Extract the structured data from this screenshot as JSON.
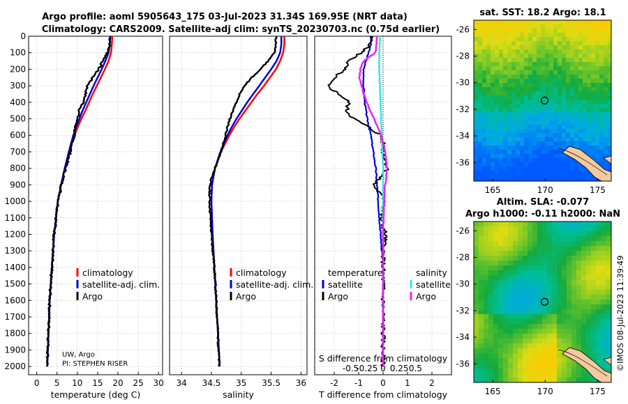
{
  "title": {
    "line1": "Argo profile: aoml 5905643_175 03-Jul-2023 31.34S 169.95E (NRT data)",
    "line2": "Climatology: CARS2009. Satellite-adj clim: synTS_20230703.nc (0.75d earlier)"
  },
  "colors": {
    "climatology": "#ff0000",
    "satellite": "#0000dd",
    "argo": "#000000",
    "sal_satellite": "#33e6e6",
    "sal_argo": "#ee22ee"
  },
  "depth_ticks": [
    "0",
    "100",
    "200",
    "300",
    "400",
    "500",
    "600",
    "700",
    "800",
    "900",
    "1000",
    "1100",
    "1200",
    "1300",
    "1400",
    "1500",
    "1600",
    "1700",
    "1800",
    "1900",
    "2000"
  ],
  "temp_ticks": [
    "0",
    "5",
    "10",
    "15",
    "20",
    "25",
    "30"
  ],
  "sal_ticks": [
    "34",
    "34.5",
    "35",
    "35.5",
    "36"
  ],
  "diff_ticks": [
    "-2",
    "-1",
    "0",
    "1",
    "2"
  ],
  "sdiff_ticks": [
    "-0.5",
    "-0.25",
    "0",
    "0.25",
    "0.5"
  ],
  "xlabels": {
    "temperature": "temperature (deg C)",
    "salinity": "salinity",
    "tdiff": "T difference from climatology",
    "sdiff": "S difference from climatology"
  },
  "legend": {
    "climatology": "climatology",
    "satellite": "satellite-adj. clim.",
    "argo": "Argo"
  },
  "diff_legend": {
    "temperature": "temperature",
    "salinity": "salinity",
    "satellite": "satellite",
    "argo": "Argo"
  },
  "credit": {
    "line1": "UW, Argo",
    "line2": "PI: STEPHEN RISER"
  },
  "maps": {
    "sst_title": "sat. SST: 18.2 Argo: 18.1",
    "sla_title1": "Altim. SLA: -0.077",
    "sla_title2": "Argo h1000: -0.11 h2000: NaN",
    "lat_ticks": [
      "-26",
      "-28",
      "-30",
      "-32",
      "-34",
      "-36"
    ],
    "lon_ticks": [
      "165",
      "170",
      "175"
    ],
    "float_lon": 169.95,
    "float_lat": -31.34
  },
  "side_label": "©IMOS 08-Jul-2023 11:39:49",
  "chart_data": [
    {
      "type": "line",
      "title": "temperature",
      "xlabel": "temperature (deg C)",
      "ylabel": "depth",
      "xlim": [
        -2,
        31
      ],
      "ylim": [
        2050,
        0
      ],
      "series": [
        {
          "name": "climatology",
          "depth": [
            0,
            50,
            100,
            150,
            200,
            250,
            300,
            350,
            400,
            450,
            500,
            550,
            600,
            700,
            800,
            900,
            1000,
            1200,
            1400,
            1600,
            1800,
            2000
          ],
          "values": [
            18.6,
            18.5,
            18.3,
            17.7,
            16.8,
            15.8,
            14.8,
            13.8,
            12.9,
            12.0,
            11.0,
            10.1,
            9.3,
            8.0,
            6.9,
            6.0,
            5.2,
            4.3,
            3.7,
            3.2,
            2.9,
            2.6
          ]
        },
        {
          "name": "satellite-adj. clim.",
          "depth": [
            0,
            50,
            100,
            150,
            200,
            250,
            300,
            350,
            400,
            450,
            500,
            550,
            600,
            700,
            800,
            900,
            1000,
            1200,
            1400,
            1600,
            1800,
            2000
          ],
          "values": [
            18.1,
            18.0,
            17.7,
            16.9,
            16.0,
            15.0,
            14.0,
            13.1,
            12.2,
            11.3,
            10.5,
            9.7,
            9.0,
            7.9,
            6.9,
            6.0,
            5.2,
            4.3,
            3.7,
            3.2,
            2.9,
            2.6
          ]
        },
        {
          "name": "Argo",
          "depth": [
            0,
            50,
            100,
            150,
            200,
            250,
            300,
            350,
            400,
            450,
            500,
            550,
            600,
            700,
            800,
            900,
            1000,
            1200,
            1400,
            1600,
            1800,
            2000
          ],
          "values": [
            18.1,
            18.0,
            17.4,
            16.3,
            15.2,
            13.8,
            12.5,
            12.0,
            11.5,
            10.5,
            10.0,
            9.5,
            9.2,
            8.3,
            7.1,
            6.1,
            5.3,
            4.3,
            3.7,
            3.2,
            2.9,
            2.6
          ]
        }
      ]
    },
    {
      "type": "line",
      "title": "salinity",
      "xlabel": "salinity",
      "ylabel": "depth",
      "xlim": [
        33.8,
        36.1
      ],
      "ylim": [
        2050,
        0
      ],
      "series": [
        {
          "name": "climatology",
          "depth": [
            0,
            50,
            100,
            150,
            200,
            250,
            300,
            350,
            400,
            450,
            500,
            550,
            600,
            650,
            700,
            800,
            900,
            1000,
            1200,
            1400,
            1600,
            1800,
            2000
          ],
          "values": [
            35.72,
            35.72,
            35.7,
            35.65,
            35.58,
            35.48,
            35.38,
            35.27,
            35.17,
            35.07,
            34.97,
            34.88,
            34.8,
            34.73,
            34.66,
            34.56,
            34.51,
            34.5,
            34.52,
            34.55,
            34.58,
            34.61,
            34.64
          ]
        },
        {
          "name": "satellite-adj. clim.",
          "depth": [
            0,
            50,
            100,
            150,
            200,
            250,
            300,
            350,
            400,
            450,
            500,
            550,
            600,
            650,
            700,
            800,
            900,
            1000,
            1200,
            1400,
            1600,
            1800,
            2000
          ],
          "values": [
            35.67,
            35.67,
            35.65,
            35.59,
            35.5,
            35.4,
            35.3,
            35.2,
            35.1,
            35.01,
            34.92,
            34.84,
            34.77,
            34.71,
            34.65,
            34.56,
            34.51,
            34.5,
            34.52,
            34.55,
            34.58,
            34.61,
            34.64
          ]
        },
        {
          "name": "Argo",
          "depth": [
            0,
            50,
            100,
            150,
            200,
            250,
            300,
            350,
            400,
            450,
            500,
            550,
            600,
            650,
            700,
            800,
            900,
            1000,
            1200,
            1400,
            1600,
            1800,
            2000
          ],
          "values": [
            35.58,
            35.58,
            35.55,
            35.45,
            35.32,
            35.18,
            35.05,
            34.97,
            34.92,
            34.86,
            34.81,
            34.77,
            34.74,
            34.7,
            34.66,
            34.56,
            34.47,
            34.47,
            34.5,
            34.55,
            34.58,
            34.61,
            34.63
          ]
        }
      ]
    },
    {
      "type": "line",
      "title": "difference from climatology",
      "xlabel": "T difference from climatology",
      "x2label": "S difference from climatology",
      "ylabel": "depth",
      "xlim": [
        -2.8,
        2.8
      ],
      "ylim": [
        2050,
        0
      ],
      "series": [
        {
          "name": "temperature Argo",
          "depth": [
            0,
            50,
            100,
            150,
            200,
            250,
            300,
            350,
            400,
            450,
            500,
            550,
            600,
            650,
            700,
            800,
            900,
            1000,
            1100,
            1200,
            1300,
            1400,
            1600,
            1800,
            2000
          ],
          "values": [
            -0.5,
            -0.5,
            -0.9,
            -1.4,
            -1.6,
            -2.0,
            -2.3,
            -1.8,
            -1.4,
            -1.5,
            -1.2,
            -0.6,
            -0.1,
            0.0,
            0.0,
            0.2,
            -0.4,
            0.1,
            -0.1,
            0.1,
            0.0,
            0.0,
            0.0,
            0.0,
            0.0
          ]
        },
        {
          "name": "temperature satellite",
          "depth": [
            0,
            50,
            100,
            150,
            200,
            300,
            400,
            500,
            600,
            700,
            800,
            900,
            1000,
            1100,
            1200,
            1300,
            1400,
            1500,
            1600,
            1800,
            2000
          ],
          "values": [
            -0.5,
            -0.5,
            -0.6,
            -0.7,
            -0.8,
            -0.8,
            -0.75,
            -0.65,
            -0.5,
            -0.4,
            -0.3,
            -0.25,
            -0.2,
            -0.15,
            -0.1,
            -0.05,
            0.0,
            0.0,
            0.0,
            0.0,
            0.0
          ]
        },
        {
          "name": "salinity Argo",
          "depth": [
            0,
            50,
            100,
            150,
            200,
            250,
            300,
            350,
            400,
            450,
            500,
            600,
            700,
            750,
            800,
            850,
            900,
            1000,
            1200,
            1400,
            1600,
            1800,
            2000
          ],
          "values": [
            -0.1,
            -0.1,
            -0.12,
            -0.3,
            -0.35,
            -0.37,
            -0.33,
            -0.3,
            -0.25,
            -0.2,
            -0.14,
            -0.03,
            0.03,
            0.05,
            0.06,
            0.05,
            0.03,
            0.02,
            0.0,
            0.0,
            0.0,
            0.0,
            0.0
          ]
        },
        {
          "name": "salinity satellite",
          "depth": [
            0,
            50,
            100,
            200,
            300,
            400,
            500,
            600,
            700,
            800,
            1000,
            1200,
            1400,
            1600,
            1800,
            2000
          ],
          "values": [
            -0.05,
            -0.05,
            -0.06,
            -0.06,
            -0.05,
            -0.04,
            -0.03,
            -0.02,
            -0.01,
            0.0,
            0.0,
            0.0,
            0.0,
            0.0,
            0.0,
            0.0
          ]
        }
      ]
    }
  ]
}
